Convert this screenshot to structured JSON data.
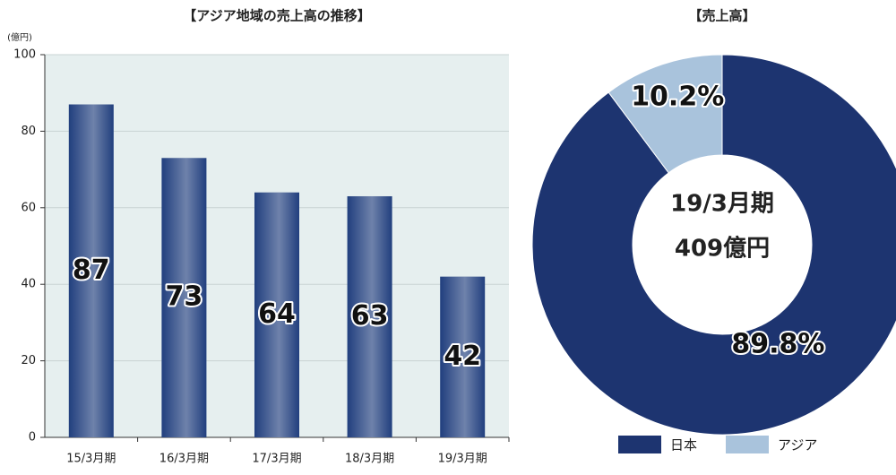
{
  "chart_data": [
    {
      "type": "bar",
      "title": "【アジア地域の売上高の推移】",
      "unit_label": "(億円)",
      "categories": [
        "15/3月期",
        "16/3月期",
        "17/3月期",
        "18/3月期",
        "19/3月期"
      ],
      "values": [
        87,
        73,
        64,
        63,
        42
      ],
      "color": "#213f7e",
      "ylim": [
        0,
        100
      ],
      "yticks": [
        0,
        20,
        40,
        60,
        80,
        100
      ],
      "grid": true
    },
    {
      "type": "pie",
      "title": "【売上高】",
      "center_labels": [
        "19/3月期",
        "409億円"
      ],
      "categories": [
        "日本",
        "アジア"
      ],
      "values": [
        89.8,
        10.2
      ],
      "value_labels": [
        "89.8%",
        "10.2%"
      ],
      "colors": [
        "#1d3470",
        "#a9c3dc"
      ],
      "legend": "bottom"
    }
  ]
}
